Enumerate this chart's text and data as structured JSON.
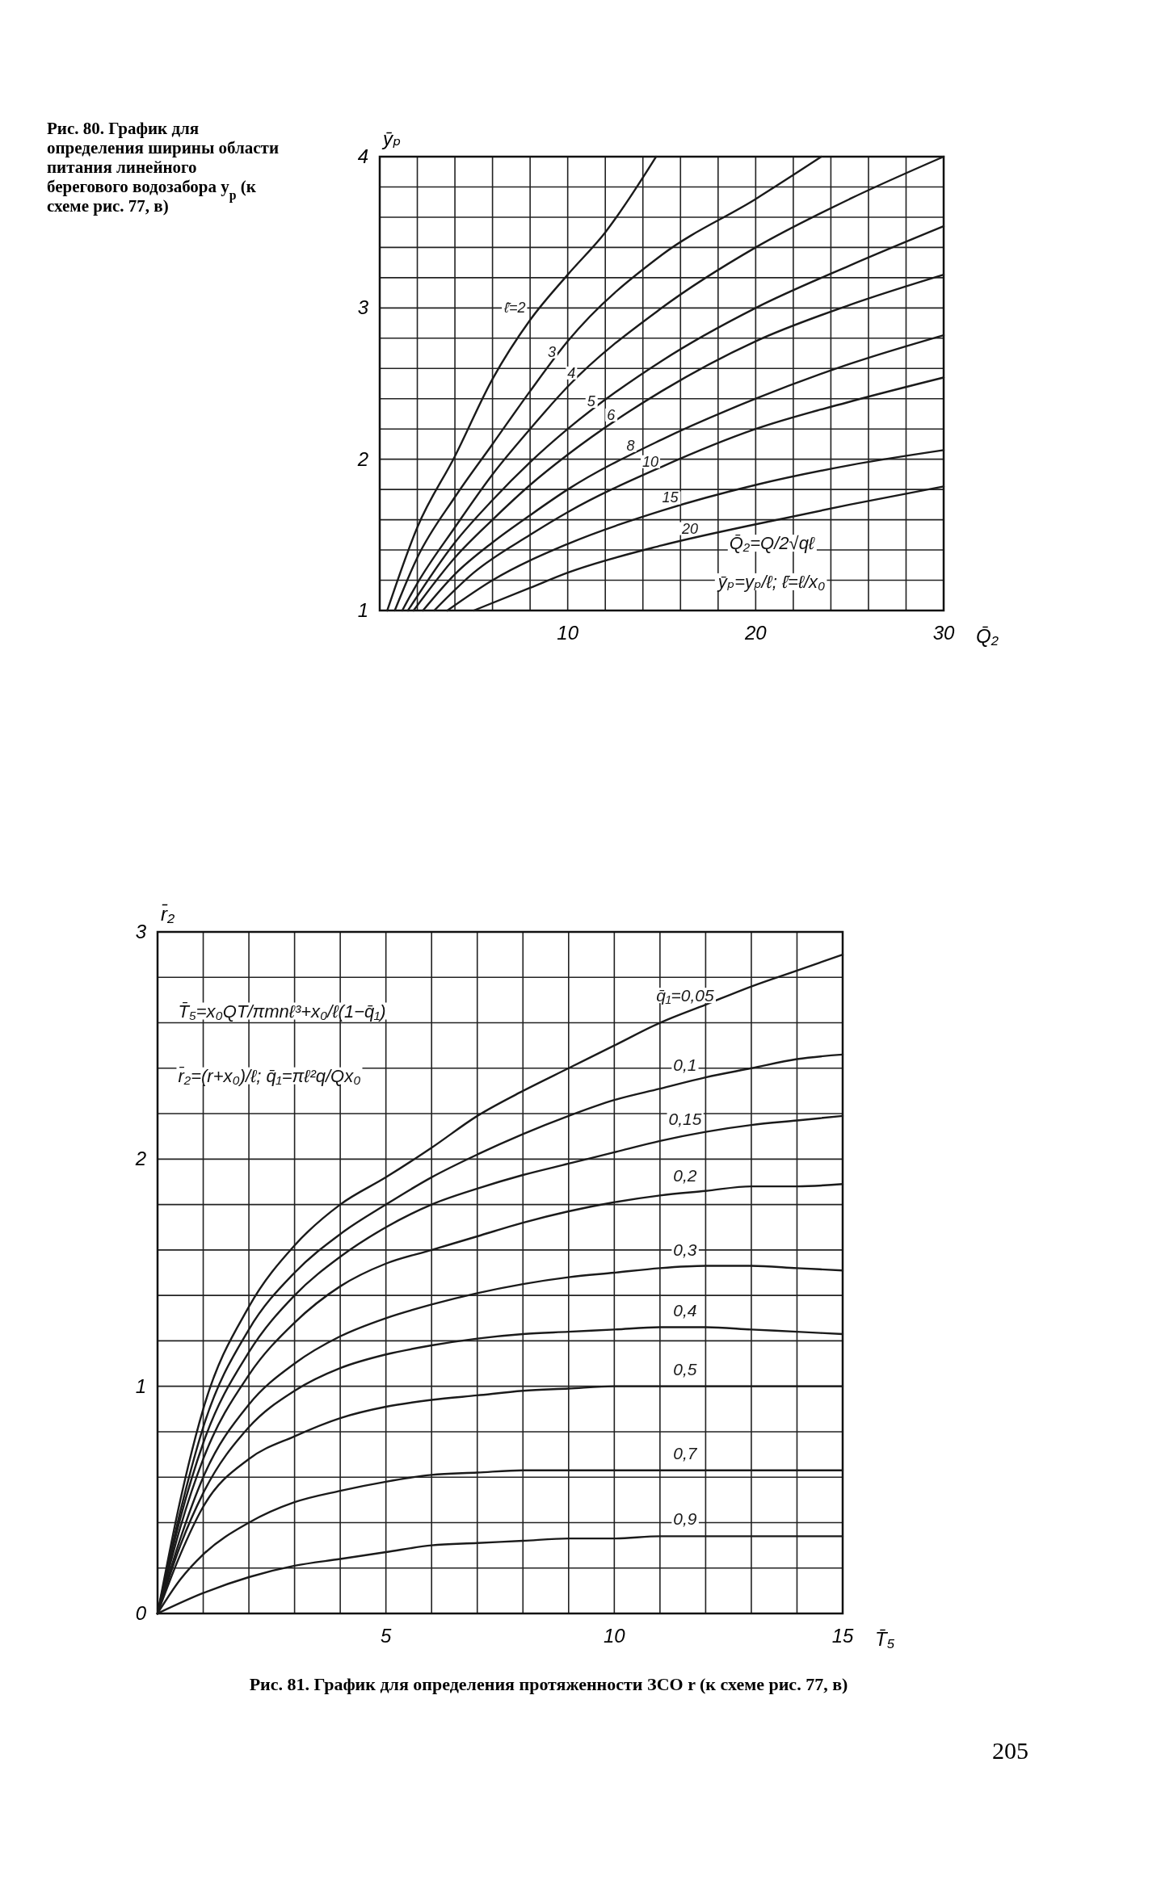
{
  "chart_data": [
    {
      "type": "line",
      "title": "Рис. 80. График для определения ширины области питания линейного берегового водозабора y$_{р}$ (к схеме рис. 77, в)",
      "xlabel": "Q̄₂",
      "ylabel": "ȳₚ",
      "xlim": [
        0,
        30
      ],
      "ylim": [
        1,
        4
      ],
      "xticks": [
        {
          "value": 2,
          "label": null
        },
        {
          "value": 4,
          "label": null
        },
        {
          "value": 6,
          "label": null
        },
        {
          "value": 8,
          "label": null
        },
        10,
        {
          "value": 12,
          "label": null
        },
        {
          "value": 14,
          "label": null
        },
        {
          "value": 16,
          "label": null
        },
        {
          "value": 18,
          "label": null
        },
        20,
        {
          "value": 22,
          "label": null
        },
        {
          "value": 24,
          "label": null
        },
        {
          "value": 26,
          "label": null
        },
        {
          "value": 28,
          "label": null
        },
        30
      ],
      "yticks": [
        1,
        {
          "value": 1.2,
          "label": null
        },
        {
          "value": 1.4,
          "label": null
        },
        {
          "value": 1.6,
          "label": null
        },
        {
          "value": 1.8,
          "label": null
        },
        2,
        {
          "value": 2.2,
          "label": null
        },
        {
          "value": 2.4,
          "label": null
        },
        {
          "value": 2.6,
          "label": null
        },
        {
          "value": 2.8,
          "label": null
        },
        3,
        {
          "value": 3.2,
          "label": null
        },
        {
          "value": 3.4,
          "label": null
        },
        {
          "value": 3.6,
          "label": null
        },
        {
          "value": 3.8,
          "label": null
        },
        4
      ],
      "grid": true,
      "annotations": [
        "Q̄₂=Q/2√qℓ",
        "ȳₚ=yₚ/ℓ; ℓ̄=ℓ/x₀"
      ],
      "series": [
        {
          "name": "ℓ̄=2",
          "color": "#1a1a1a",
          "x": [
            0.4,
            2,
            4,
            6,
            8,
            10,
            12,
            14.7
          ],
          "values": [
            1,
            1.55,
            2.02,
            2.53,
            2.92,
            3.22,
            3.5,
            4
          ]
        },
        {
          "name": "3",
          "color": "#1a1a1a",
          "x": [
            0.8,
            2,
            4,
            6,
            8,
            10,
            15,
            20,
            23.5
          ],
          "values": [
            1,
            1.35,
            1.75,
            2.1,
            2.45,
            2.78,
            3.35,
            3.72,
            4
          ]
        },
        {
          "name": "4",
          "color": "#1a1a1a",
          "x": [
            1.2,
            2,
            4,
            6,
            8,
            10,
            15,
            20,
            25,
            30
          ],
          "values": [
            1,
            1.18,
            1.55,
            1.9,
            2.2,
            2.48,
            3.0,
            3.4,
            3.72,
            4.0
          ]
        },
        {
          "name": "5",
          "color": "#1a1a1a",
          "x": [
            1.5,
            4,
            6,
            8,
            10,
            15,
            20,
            25,
            30
          ],
          "values": [
            1,
            1.45,
            1.73,
            1.98,
            2.2,
            2.65,
            3.0,
            3.28,
            3.54
          ]
        },
        {
          "name": "6",
          "color": "#1a1a1a",
          "x": [
            1.8,
            4,
            6,
            8,
            10,
            15,
            20,
            25,
            30
          ],
          "values": [
            1,
            1.35,
            1.6,
            1.83,
            2.03,
            2.45,
            2.78,
            3.02,
            3.22
          ]
        },
        {
          "name": "8",
          "color": "#1a1a1a",
          "x": [
            2.3,
            4,
            6,
            8,
            10,
            15,
            20,
            25,
            30
          ],
          "values": [
            1,
            1.24,
            1.45,
            1.63,
            1.8,
            2.13,
            2.4,
            2.63,
            2.82
          ]
        },
        {
          "name": "10",
          "color": "#1a1a1a",
          "x": [
            2.9,
            5,
            8,
            10,
            15,
            20,
            25,
            30
          ],
          "values": [
            1,
            1.25,
            1.5,
            1.65,
            1.95,
            2.2,
            2.38,
            2.54
          ]
        },
        {
          "name": "15",
          "color": "#1a1a1a",
          "x": [
            3.6,
            6,
            10,
            15,
            20,
            25,
            30
          ],
          "values": [
            1,
            1.2,
            1.44,
            1.66,
            1.83,
            1.96,
            2.06
          ]
        },
        {
          "name": "20",
          "color": "#1a1a1a",
          "x": [
            5,
            8,
            10,
            15,
            20,
            25,
            30
          ],
          "values": [
            1,
            1.15,
            1.25,
            1.43,
            1.57,
            1.7,
            1.82
          ]
        }
      ]
    },
    {
      "type": "line",
      "title": "Рис. 81. График для определения протяженности ЗСО r (к схеме рис. 77, в)",
      "xlabel": "T̄₅",
      "ylabel": "r̄₂",
      "xlim": [
        0,
        15
      ],
      "ylim": [
        0,
        3
      ],
      "xticks": [
        {
          "value": 1,
          "label": null
        },
        {
          "value": 2,
          "label": null
        },
        {
          "value": 3,
          "label": null
        },
        {
          "value": 4,
          "label": null
        },
        5,
        {
          "value": 6,
          "label": null
        },
        {
          "value": 7,
          "label": null
        },
        {
          "value": 8,
          "label": null
        },
        {
          "value": 9,
          "label": null
        },
        10,
        {
          "value": 11,
          "label": null
        },
        {
          "value": 12,
          "label": null
        },
        {
          "value": 13,
          "label": null
        },
        {
          "value": 14,
          "label": null
        },
        15
      ],
      "yticks": [
        0,
        {
          "value": 0.2,
          "label": null
        },
        {
          "value": 0.4,
          "label": null
        },
        {
          "value": 0.6,
          "label": null
        },
        {
          "value": 0.8,
          "label": null
        },
        1,
        {
          "value": 1.2,
          "label": null
        },
        {
          "value": 1.4,
          "label": null
        },
        {
          "value": 1.6,
          "label": null
        },
        {
          "value": 1.8,
          "label": null
        },
        2,
        {
          "value": 2.2,
          "label": null
        },
        {
          "value": 2.4,
          "label": null
        },
        {
          "value": 2.6,
          "label": null
        },
        {
          "value": 2.8,
          "label": null
        },
        3
      ],
      "grid": true,
      "annotations": [
        "T̄₅=x₀QT/πmnℓ³+x₀/ℓ(1−q̄₁)",
        "r̄₂=(r+x₀)/ℓ; q̄₁=πℓ²q/Qx₀",
        "205"
      ],
      "series": [
        {
          "name": "q̄₁=0,05",
          "color": "#1a1a1a",
          "x": [
            0,
            0.5,
            1,
            2,
            3,
            4,
            5,
            6,
            7,
            8,
            9,
            10,
            11,
            12,
            13,
            14,
            15
          ],
          "values": [
            0,
            0.5,
            0.9,
            1.35,
            1.62,
            1.8,
            1.92,
            2.05,
            2.19,
            2.3,
            2.4,
            2.5,
            2.6,
            2.68,
            2.76,
            2.83,
            2.9
          ]
        },
        {
          "name": "0,1",
          "color": "#1a1a1a",
          "x": [
            0,
            0.5,
            1,
            2,
            3,
            4,
            5,
            6,
            7,
            8,
            9,
            10,
            11,
            12,
            13,
            14,
            15
          ],
          "values": [
            0,
            0.45,
            0.82,
            1.25,
            1.5,
            1.67,
            1.8,
            1.92,
            2.02,
            2.11,
            2.19,
            2.26,
            2.31,
            2.36,
            2.4,
            2.44,
            2.46
          ]
        },
        {
          "name": "0,15",
          "color": "#1a1a1a",
          "x": [
            0,
            0.5,
            1,
            2,
            3,
            4,
            5,
            6,
            7,
            8,
            9,
            10,
            11,
            12,
            13,
            14,
            15
          ],
          "values": [
            0,
            0.42,
            0.75,
            1.15,
            1.4,
            1.57,
            1.7,
            1.8,
            1.87,
            1.93,
            1.98,
            2.03,
            2.08,
            2.12,
            2.15,
            2.17,
            2.19
          ]
        },
        {
          "name": "0,2",
          "color": "#1a1a1a",
          "x": [
            0,
            0.5,
            1,
            2,
            3,
            4,
            5,
            6,
            7,
            8,
            9,
            10,
            11,
            12,
            13,
            14,
            15
          ],
          "values": [
            0,
            0.38,
            0.68,
            1.05,
            1.28,
            1.44,
            1.54,
            1.6,
            1.66,
            1.72,
            1.77,
            1.81,
            1.84,
            1.86,
            1.88,
            1.88,
            1.89
          ]
        },
        {
          "name": "0,3",
          "color": "#1a1a1a",
          "x": [
            0,
            0.5,
            1,
            2,
            3,
            4,
            5,
            6,
            7,
            8,
            9,
            10,
            11,
            12,
            13,
            14,
            15
          ],
          "values": [
            0,
            0.33,
            0.6,
            0.92,
            1.1,
            1.22,
            1.3,
            1.36,
            1.41,
            1.45,
            1.48,
            1.5,
            1.52,
            1.53,
            1.53,
            1.52,
            1.51
          ]
        },
        {
          "name": "0,4",
          "color": "#1a1a1a",
          "x": [
            0,
            0.5,
            1,
            2,
            3,
            4,
            5,
            6,
            7,
            8,
            9,
            10,
            11,
            12,
            13,
            14,
            15
          ],
          "values": [
            0,
            0.3,
            0.53,
            0.82,
            0.98,
            1.08,
            1.14,
            1.18,
            1.21,
            1.23,
            1.24,
            1.25,
            1.26,
            1.26,
            1.25,
            1.24,
            1.23
          ]
        },
        {
          "name": "0,5",
          "color": "#1a1a1a",
          "x": [
            0,
            0.5,
            1,
            2,
            3,
            4,
            5,
            6,
            7,
            8,
            9,
            10,
            11,
            12,
            13,
            14,
            15
          ],
          "values": [
            0,
            0.26,
            0.47,
            0.68,
            0.78,
            0.86,
            0.91,
            0.94,
            0.96,
            0.98,
            0.99,
            1.0,
            1.0,
            1.0,
            1.0,
            1.0,
            1.0
          ]
        },
        {
          "name": "0,7",
          "color": "#1a1a1a",
          "x": [
            0,
            0.5,
            1,
            2,
            3,
            4,
            5,
            6,
            7,
            8,
            9,
            10,
            11,
            12,
            13,
            14,
            15
          ],
          "values": [
            0,
            0.15,
            0.26,
            0.4,
            0.49,
            0.54,
            0.58,
            0.61,
            0.62,
            0.63,
            0.63,
            0.63,
            0.63,
            0.63,
            0.63,
            0.63,
            0.63
          ]
        },
        {
          "name": "0,9",
          "color": "#1a1a1a",
          "x": [
            0,
            1,
            2,
            3,
            4,
            5,
            6,
            7,
            8,
            9,
            10,
            11,
            12,
            13,
            14,
            15
          ],
          "values": [
            0,
            0.09,
            0.16,
            0.21,
            0.24,
            0.27,
            0.3,
            0.31,
            0.32,
            0.33,
            0.33,
            0.34,
            0.34,
            0.34,
            0.34,
            0.34
          ]
        }
      ]
    }
  ]
}
